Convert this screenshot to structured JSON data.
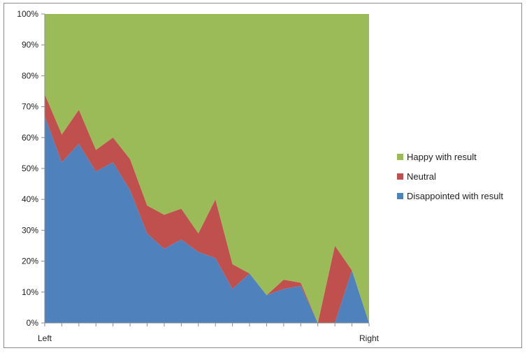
{
  "chart_data": {
    "type": "area",
    "stacked": "percent",
    "x_labels": [
      "Left",
      "Right"
    ],
    "x": [
      0,
      1,
      2,
      3,
      4,
      5,
      6,
      7,
      8,
      9,
      10,
      11,
      12,
      13,
      14,
      15,
      16,
      17,
      18,
      19
    ],
    "ylim": [
      0,
      100
    ],
    "yticks": [
      "0%",
      "10%",
      "20%",
      "30%",
      "40%",
      "50%",
      "60%",
      "70%",
      "80%",
      "90%",
      "100%"
    ],
    "grid": false,
    "legend_position": "right",
    "series": [
      {
        "name": "Disappointed with result",
        "color": "#4f81bd",
        "values": [
          67,
          52,
          58,
          49,
          52,
          43,
          29,
          24,
          27,
          23,
          21,
          11,
          16,
          9,
          11,
          12,
          0,
          0,
          17,
          0
        ]
      },
      {
        "name": "Neutral",
        "color": "#c0504d",
        "values": [
          7,
          9,
          11,
          7,
          8,
          10,
          9,
          11,
          10,
          6,
          19,
          8,
          0,
          0,
          3,
          1,
          0,
          25,
          0,
          0
        ]
      },
      {
        "name": "Happy with result",
        "color": "#9bbb59",
        "values": [
          26,
          39,
          31,
          44,
          40,
          47,
          62,
          65,
          63,
          71,
          60,
          81,
          84,
          91,
          86,
          87,
          100,
          75,
          83,
          100
        ]
      }
    ]
  }
}
